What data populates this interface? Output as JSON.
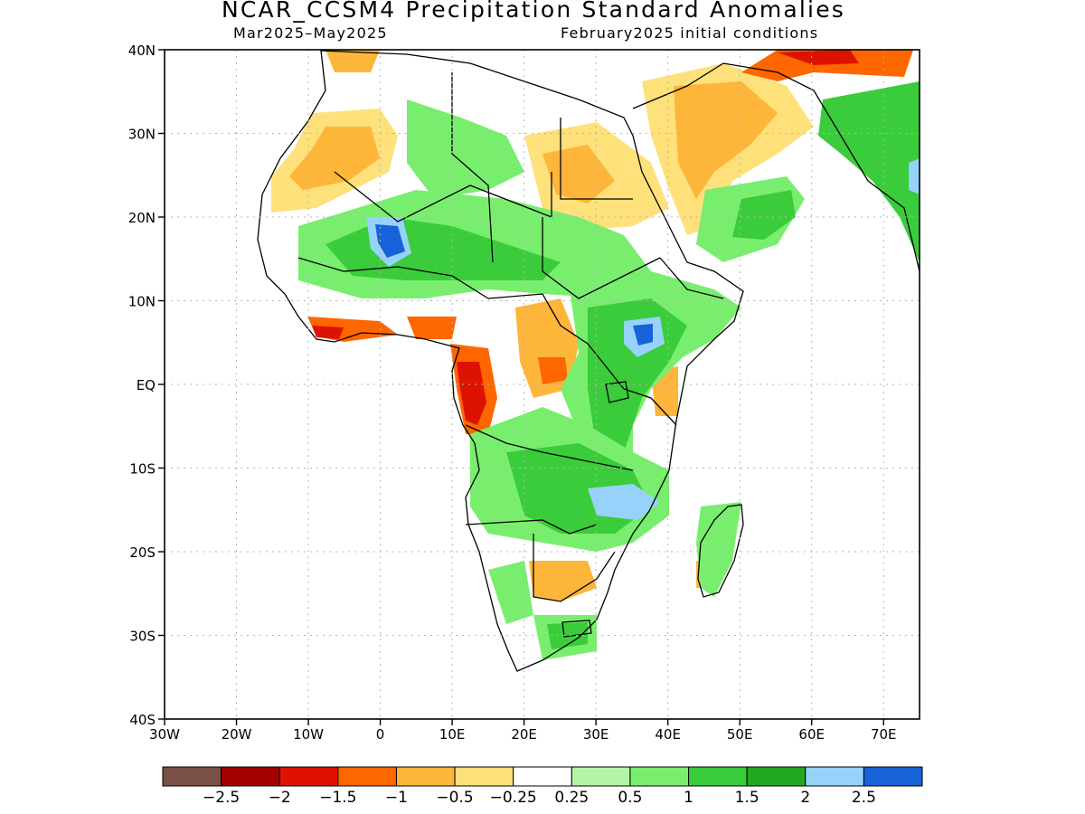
{
  "title": "NCAR_CCSM4 Precipitation Standard Anomalies",
  "subtitle_left": "Mar2025–May2025",
  "subtitle_right": "February2025 initial conditions",
  "y_ticks": [
    "40N",
    "30N",
    "20N",
    "10N",
    "EQ",
    "10S",
    "20S",
    "30S",
    "40S"
  ],
  "x_ticks": [
    "30W",
    "20W",
    "10W",
    "0",
    "10E",
    "20E",
    "30E",
    "40E",
    "50E",
    "60E",
    "70E"
  ],
  "colorbar": {
    "colors": [
      "#7a4f45",
      "#a30000",
      "#de1200",
      "#fe6600",
      "#fdb63a",
      "#fee17a",
      "#ffffff",
      "#b4f5a5",
      "#79ee6e",
      "#3bcc3b",
      "#22a822",
      "#96d2fa",
      "#1762d8"
    ],
    "labels": [
      "−2.5",
      "−2",
      "−1.5",
      "−1",
      "−0.5",
      "−0.25",
      "0.25",
      "0.5",
      "1",
      "1.5",
      "2",
      "2.5"
    ]
  }
}
